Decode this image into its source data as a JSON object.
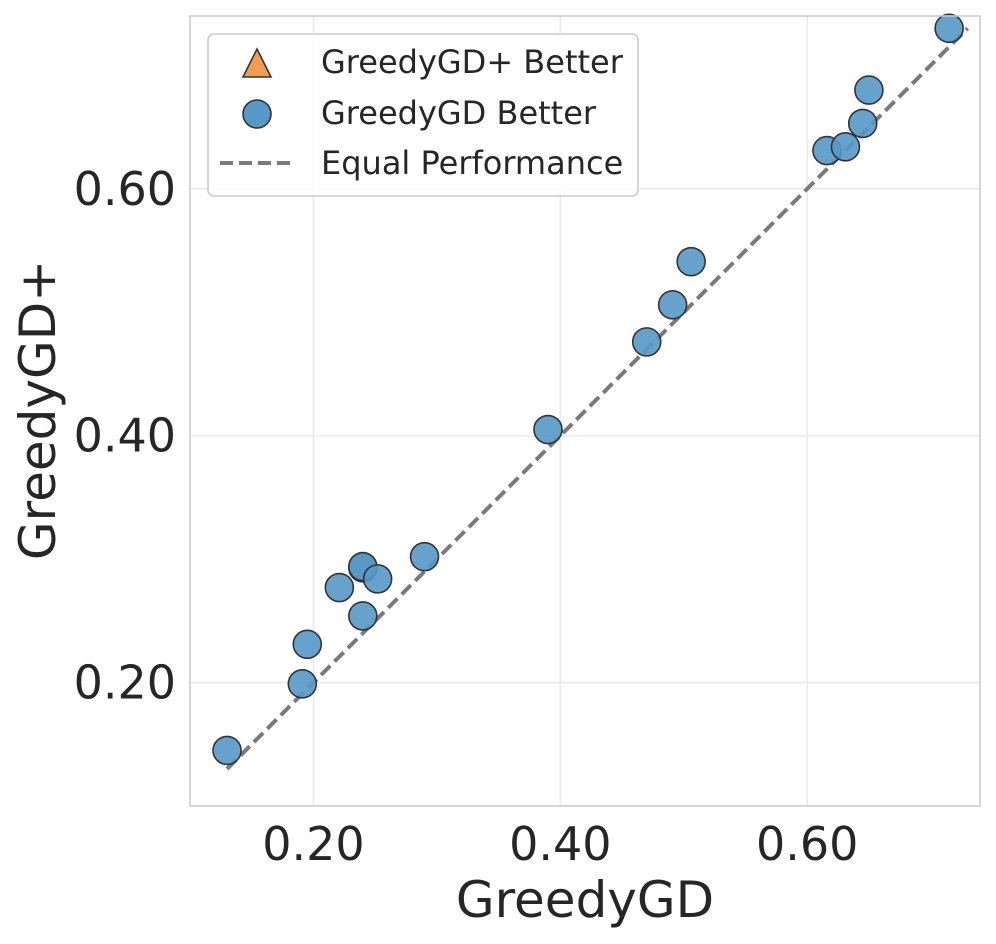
{
  "chart_data": {
    "type": "scatter",
    "title": "",
    "xlabel": "GreedyGD",
    "ylabel": "GreedyGD+",
    "xlim": [
      0.1,
      0.74
    ],
    "ylim": [
      0.1,
      0.74
    ],
    "xticks": [
      0.2,
      0.4,
      0.6
    ],
    "yticks": [
      0.2,
      0.4,
      0.6
    ],
    "xtick_labels": [
      "0.20",
      "0.40",
      "0.60"
    ],
    "ytick_labels": [
      "0.20",
      "0.40",
      "0.60"
    ],
    "grid": true,
    "legend_position": "top-left",
    "legend": [
      {
        "label": "GreedyGD+ Better",
        "marker": "triangle",
        "color": "#f39c52"
      },
      {
        "label": "GreedyGD Better",
        "marker": "circle",
        "color": "#5698c8"
      },
      {
        "label": "Equal Performance",
        "marker": "dashed-line",
        "color": "#7a7a7a"
      }
    ],
    "series": [
      {
        "name": "GreedyGD+ Better",
        "marker": "triangle",
        "color": "#f39c52",
        "points": []
      },
      {
        "name": "GreedyGD Better",
        "marker": "circle",
        "color": "#5698c8",
        "points": [
          {
            "x": 0.13,
            "y": 0.145
          },
          {
            "x": 0.191,
            "y": 0.199
          },
          {
            "x": 0.195,
            "y": 0.231
          },
          {
            "x": 0.221,
            "y": 0.277
          },
          {
            "x": 0.24,
            "y": 0.254
          },
          {
            "x": 0.24,
            "y": 0.293
          },
          {
            "x": 0.24,
            "y": 0.294
          },
          {
            "x": 0.252,
            "y": 0.284
          },
          {
            "x": 0.29,
            "y": 0.302
          },
          {
            "x": 0.39,
            "y": 0.405
          },
          {
            "x": 0.47,
            "y": 0.476
          },
          {
            "x": 0.491,
            "y": 0.506
          },
          {
            "x": 0.506,
            "y": 0.541
          },
          {
            "x": 0.616,
            "y": 0.631
          },
          {
            "x": 0.631,
            "y": 0.634
          },
          {
            "x": 0.645,
            "y": 0.653
          },
          {
            "x": 0.65,
            "y": 0.68
          },
          {
            "x": 0.715,
            "y": 0.73
          }
        ]
      }
    ],
    "reference_line": {
      "name": "Equal Performance",
      "x": [
        0.13,
        0.73
      ],
      "y": [
        0.13,
        0.73
      ],
      "color": "#7a7a7a",
      "style": "dashed"
    }
  }
}
